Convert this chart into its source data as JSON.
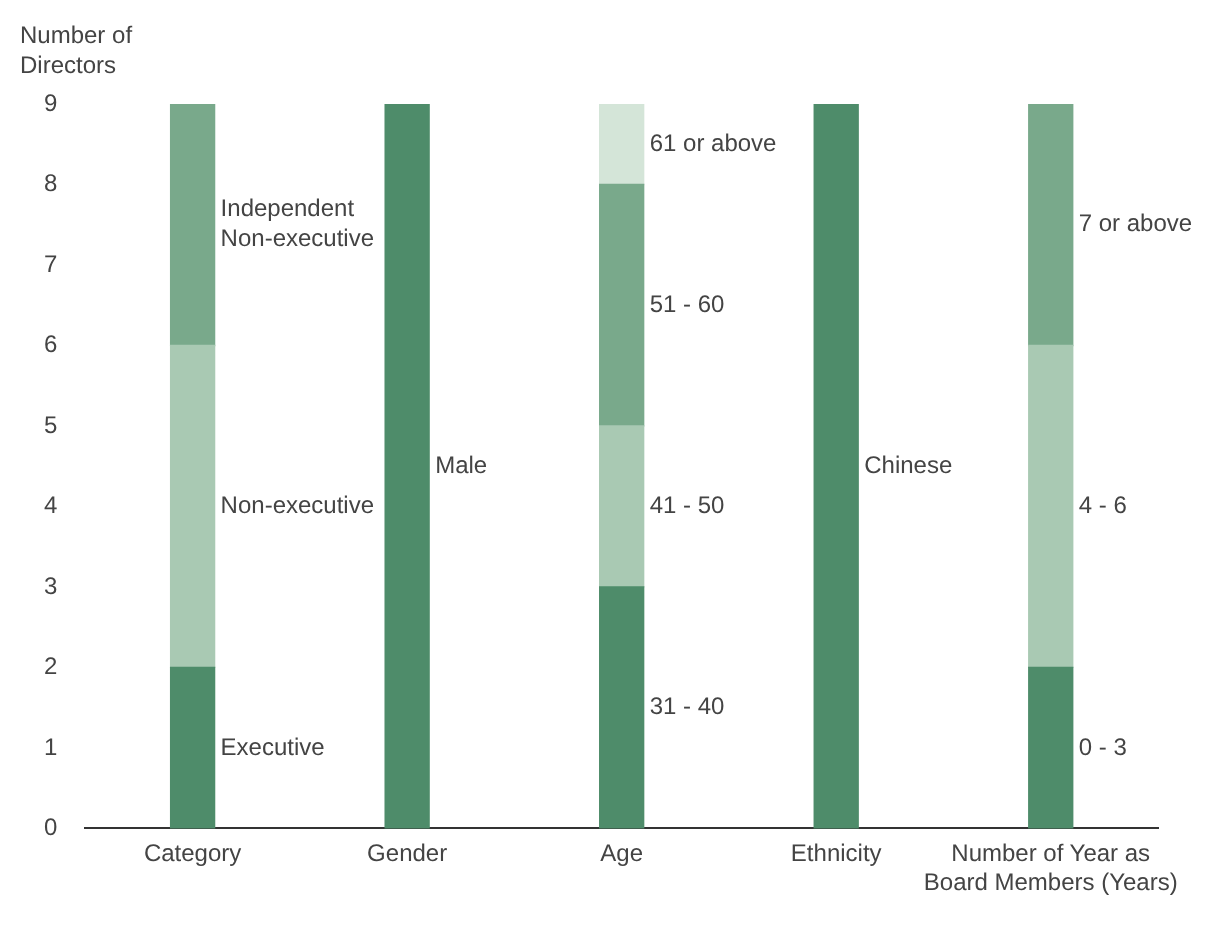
{
  "chart_data": {
    "type": "bar",
    "ylabel": "Number of Directors",
    "categories": [
      "Category",
      "Gender",
      "Age",
      "Ethnicity",
      "Number of Year as Board Members (Years)"
    ],
    "stacked": true,
    "grid": false,
    "ylim": [
      0,
      9
    ],
    "yticks": [
      0,
      1,
      2,
      3,
      4,
      5,
      6,
      7,
      8,
      9
    ],
    "series": [
      {
        "color": "#4e8c6a",
        "values": [
          2,
          9,
          3,
          9,
          2
        ]
      },
      {
        "color": "#a9c9b3",
        "values": [
          4,
          null,
          2,
          null,
          4
        ]
      },
      {
        "color": "#79a98b",
        "values": [
          3,
          null,
          3,
          null,
          3
        ]
      },
      {
        "color": "#d4e5d8",
        "values": [
          null,
          null,
          1,
          null,
          null
        ]
      }
    ],
    "annotations": [
      "Executive",
      "Non-executive",
      "Independent Non-executive",
      "Male",
      "31 - 40",
      "41 - 50",
      "51 - 60",
      "61 or above",
      "Chinese",
      "0 - 3",
      "4 - 6",
      "7 or above"
    ]
  }
}
